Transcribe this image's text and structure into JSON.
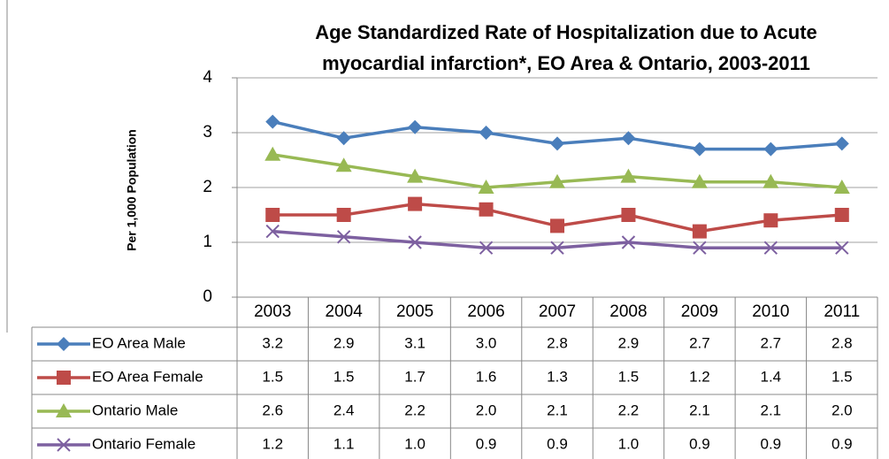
{
  "chart_data": {
    "type": "line",
    "title": [
      "Age Standardized Rate of Hospitalization due to Acute",
      "myocardial infarction*, EO Area & Ontario, 2003-2011"
    ],
    "y_label": "Per 1,000 Population",
    "categories": [
      "2003",
      "2004",
      "2005",
      "2006",
      "2007",
      "2008",
      "2009",
      "2010",
      "2011"
    ],
    "ylim": [
      0,
      4
    ],
    "yticks": [
      0,
      1,
      2,
      3,
      4
    ],
    "grid": true,
    "series": [
      {
        "name": "EO Area Male",
        "color": "#4a7ebb",
        "marker": "diamond",
        "values": [
          3.2,
          2.9,
          3.1,
          3.0,
          2.8,
          2.9,
          2.7,
          2.7,
          2.8
        ],
        "value_labels": [
          "3.2",
          "2.9",
          "3.1",
          "3.0",
          "2.8",
          "2.9",
          "2.7",
          "2.7",
          "2.8"
        ]
      },
      {
        "name": "EO Area Female",
        "color": "#be4b48",
        "marker": "square",
        "values": [
          1.5,
          1.5,
          1.7,
          1.6,
          1.3,
          1.5,
          1.2,
          1.4,
          1.5
        ],
        "value_labels": [
          "1.5",
          "1.5",
          "1.7",
          "1.6",
          "1.3",
          "1.5",
          "1.2",
          "1.4",
          "1.5"
        ]
      },
      {
        "name": "Ontario Male",
        "color": "#98b954",
        "marker": "triangle",
        "values": [
          2.6,
          2.4,
          2.2,
          2.0,
          2.1,
          2.2,
          2.1,
          2.1,
          2.0
        ],
        "value_labels": [
          "2.6",
          "2.4",
          "2.2",
          "2.0",
          "2.1",
          "2.2",
          "2.1",
          "2.1",
          "2.0"
        ]
      },
      {
        "name": "Ontario Female",
        "color": "#7d60a0",
        "marker": "x",
        "values": [
          1.2,
          1.1,
          1.0,
          0.9,
          0.9,
          1.0,
          0.9,
          0.9,
          0.9
        ],
        "value_labels": [
          "1.2",
          "1.1",
          "1.0",
          "0.9",
          "0.9",
          "1.0",
          "0.9",
          "0.9",
          "0.9"
        ]
      }
    ]
  }
}
